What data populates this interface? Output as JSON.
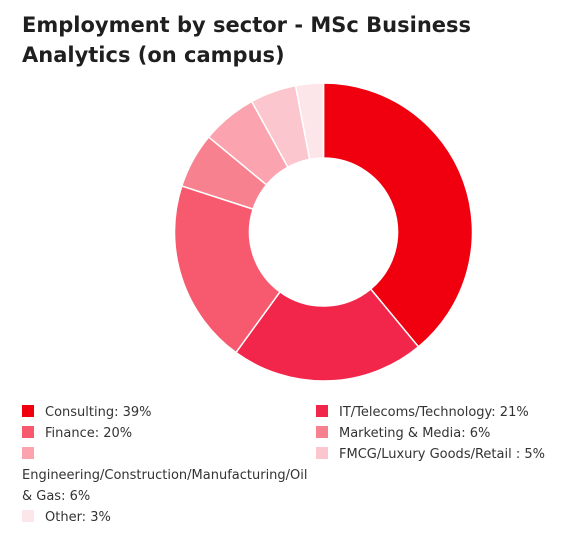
{
  "chart_data": {
    "type": "pie",
    "title": "Employment by sector - MSc Business Analytics (on campus)",
    "donut": true,
    "legend_position": "bottom",
    "slices": [
      {
        "label": "Consulting: 39%",
        "value": 39,
        "color": "#f0000f"
      },
      {
        "label": "IT/Telecoms/Technology: 21%",
        "value": 21,
        "color": "#f2264a"
      },
      {
        "label": "Finance: 20%",
        "value": 20,
        "color": "#f7596f"
      },
      {
        "label": "Marketing & Media: 6%",
        "value": 6,
        "color": "#f8818f"
      },
      {
        "label": "Engineering/Construction/Manufacturing/Oil & Gas: 6%",
        "value": 6,
        "color": "#fba3ae"
      },
      {
        "label": "FMCG/Luxury Goods/Retail : 5%",
        "value": 5,
        "color": "#fcc6ce"
      },
      {
        "label": "Other: 3%",
        "value": 3,
        "color": "#fde6ea"
      }
    ]
  }
}
